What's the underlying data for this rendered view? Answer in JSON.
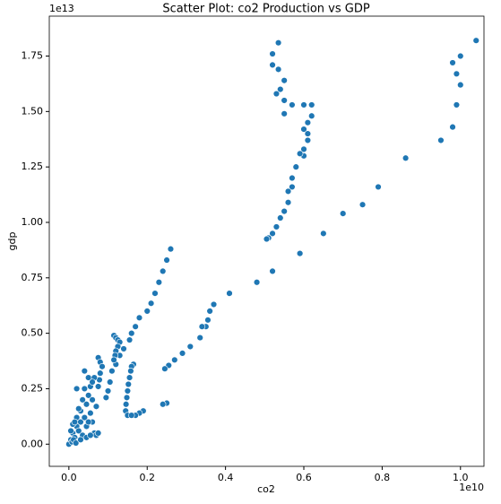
{
  "chart_data": {
    "type": "scatter",
    "title": "Scatter Plot: co2 Production vs GDP",
    "x_label": "co2",
    "y_label": "gdp",
    "x_offset_label": "1e10",
    "y_offset_label": "1e13",
    "color": "#1f77b4",
    "xlim": [
      -500000000.0,
      10600000000.0
    ],
    "ylim": [
      -1000000000000.0,
      19300000000000.0
    ],
    "xticks": [
      {
        "value": 0,
        "label": "0.0"
      },
      {
        "value": 2000000000.0,
        "label": "0.2"
      },
      {
        "value": 4000000000.0,
        "label": "0.4"
      },
      {
        "value": 6000000000.0,
        "label": "0.6"
      },
      {
        "value": 8000000000.0,
        "label": "0.8"
      },
      {
        "value": 10000000000.0,
        "label": "1.0"
      }
    ],
    "yticks": [
      {
        "value": 0,
        "label": "0.00"
      },
      {
        "value": 2500000000000.0,
        "label": "0.25"
      },
      {
        "value": 5000000000000.0,
        "label": "0.50"
      },
      {
        "value": 7500000000000.0,
        "label": "0.75"
      },
      {
        "value": 10000000000000.0,
        "label": "1.00"
      },
      {
        "value": 12500000000000.0,
        "label": "1.25"
      },
      {
        "value": 15000000000000.0,
        "label": "1.50"
      },
      {
        "value": 17500000000000.0,
        "label": "1.75"
      }
    ],
    "x": [
      10400000000.0,
      10000000000.0,
      9800000000.0,
      9900000000.0,
      10000000000.0,
      9900000000.0,
      9800000000.0,
      9500000000.0,
      8600000000.0,
      7900000000.0,
      7500000000.0,
      7000000000.0,
      6500000000.0,
      5900000000.0,
      5200000000.0,
      4800000000.0,
      4100000000.0,
      3700000000.0,
      3600000000.0,
      3550000000.0,
      3500000000.0,
      3400000000.0,
      3350000000.0,
      3100000000.0,
      2900000000.0,
      2700000000.0,
      2550000000.0,
      2450000000.0,
      2500000000.0,
      2400000000.0,
      1900000000.0,
      1800000000.0,
      1700000000.0,
      5350000000.0,
      5200000000.0,
      5200000000.0,
      5350000000.0,
      5500000000.0,
      5400000000.0,
      5300000000.0,
      5500000000.0,
      5700000000.0,
      6000000000.0,
      6200000000.0,
      6200000000.0,
      6100000000.0,
      6000000000.0,
      5500000000.0,
      6100000000.0,
      6100000000.0,
      6000000000.0,
      6000000000.0,
      5900000000.0,
      5800000000.0,
      5700000000.0,
      5700000000.0,
      5600000000.0,
      5600000000.0,
      5500000000.0,
      5400000000.0,
      5300000000.0,
      5200000000.0,
      5100000000.0,
      5050000000.0,
      2600000000.0,
      2500000000.0,
      2400000000.0,
      2300000000.0,
      2200000000.0,
      2100000000.0,
      2000000000.0,
      1800000000.0,
      1700000000.0,
      1600000000.0,
      1550000000.0,
      1400000000.0,
      1300000000.0,
      1200000000.0,
      1100000000.0,
      1050000000.0,
      1000000000.0,
      950000000.0,
      1150000000.0,
      1200000000.0,
      1250000000.0,
      1300000000.0,
      1250000000.0,
      1200000000.0,
      1180000000.0,
      1150000000.0,
      1650000000.0,
      1600000000.0,
      1580000000.0,
      1550000000.0,
      1520000000.0,
      1500000000.0,
      1480000000.0,
      1460000000.0,
      1450000000.0,
      1500000000.0,
      1600000000.0,
      750000000.0,
      800000000.0,
      850000000.0,
      800000000.0,
      780000000.0,
      750000000.0,
      0,
      50000000.0,
      100000000.0,
      150000000.0,
      200000000.0,
      200000000.0,
      250000000.0,
      300000000.0,
      300000000.0,
      350000000.0,
      350000000.0,
      400000000.0,
      400000000.0,
      450000000.0,
      450000000.0,
      500000000.0,
      500000000.0,
      550000000.0,
      550000000.0,
      600000000.0,
      600000000.0,
      650000000.0,
      650000000.0,
      700000000.0,
      700000000.0,
      100000000.0,
      150000000.0,
      250000000.0,
      50000000.0,
      80000000.0,
      120000000.0,
      180000000.0,
      300000000.0,
      450000000.0,
      550000000.0,
      750000000.0,
      200000000.0,
      400000000.0,
      500000000.0,
      600000000.0
    ],
    "y": [
      18200000000000.0,
      17500000000000.0,
      17200000000000.0,
      16700000000000.0,
      16200000000000.0,
      15300000000000.0,
      14300000000000.0,
      13700000000000.0,
      12900000000000.0,
      11600000000000.0,
      10800000000000.0,
      10400000000000.0,
      9500000000000.0,
      8600000000000.0,
      7800000000000.0,
      7300000000000.0,
      6800000000000.0,
      6300000000000.0,
      6000000000000.0,
      5600000000000.0,
      5300000000000.0,
      5300000000000.0,
      4800000000000.0,
      4400000000000.0,
      4100000000000.0,
      3800000000000.0,
      3550000000000.0,
      3400000000000.0,
      1850000000000.0,
      1800000000000.0,
      1500000000000.0,
      1400000000000.0,
      1300000000000.0,
      18100000000000.0,
      17600000000000.0,
      17100000000000.0,
      16900000000000.0,
      16400000000000.0,
      16000000000000.0,
      15800000000000.0,
      15500000000000.0,
      15300000000000.0,
      15300000000000.0,
      15300000000000.0,
      14800000000000.0,
      14500000000000.0,
      14200000000000.0,
      14900000000000.0,
      14000000000000.0,
      13700000000000.0,
      13300000000000.0,
      13000000000000.0,
      13100000000000.0,
      12500000000000.0,
      12000000000000.0,
      11600000000000.0,
      11400000000000.0,
      10900000000000.0,
      10500000000000.0,
      10200000000000.0,
      9800000000000.0,
      9500000000000.0,
      9300000000000.0,
      9250000000000.0,
      8800000000000.0,
      8300000000000.0,
      7800000000000.0,
      7300000000000.0,
      6800000000000.0,
      6350000000000.0,
      6000000000000.0,
      5700000000000.0,
      5300000000000.0,
      5000000000000.0,
      4700000000000.0,
      4300000000000.0,
      4000000000000.0,
      3600000000000.0,
      3300000000000.0,
      2800000000000.0,
      2400000000000.0,
      2100000000000.0,
      4900000000000.0,
      4800000000000.0,
      4700000000000.0,
      4600000000000.0,
      4400000000000.0,
      4200000000000.0,
      4000000000000.0,
      3800000000000.0,
      3600000000000.0,
      3500000000000.0,
      3300000000000.0,
      3000000000000.0,
      2700000000000.0,
      2400000000000.0,
      2100000000000.0,
      1800000000000.0,
      1500000000000.0,
      1300000000000.0,
      1300000000000.0,
      3900000000000.0,
      3700000000000.0,
      3500000000000.0,
      3200000000000.0,
      2900000000000.0,
      2600000000000.0,
      0,
      200000000000.0,
      500000000000.0,
      300000000000.0,
      800000000000.0,
      1200000000000.0,
      600000000000.0,
      1000000000000.0,
      1500000000000.0,
      2000000000000.0,
      400000000000.0,
      1200000000000.0,
      2500000000000.0,
      1800000000000.0,
      800000000000.0,
      2200000000000.0,
      3000000000000.0,
      1400000000000.0,
      2600000000000.0,
      1000000000000.0,
      2000000000000.0,
      500000000000.0,
      3000000000000.0,
      400000000000.0,
      1700000000000.0,
      900000000000.0,
      1000000000000.0,
      1600000000000.0,
      600000000000.0,
      100000000000.0,
      200000000000.0,
      50000000000.0,
      200000000000.0,
      300000000000.0,
      400000000000.0,
      500000000000.0,
      2500000000000.0,
      3300000000000.0,
      1000000000000.0,
      2800000000000.0
    ]
  }
}
